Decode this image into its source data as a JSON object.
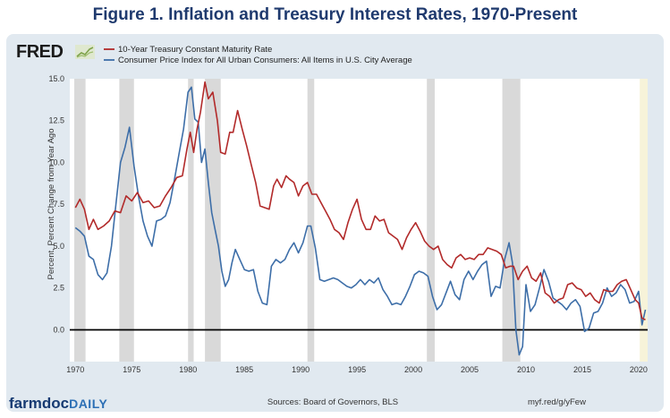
{
  "page": {
    "title": "Figure 1.  Inflation and Treasury Interest Rates, 1970-Present",
    "fred_logo": "FRED",
    "brand_main": "farmdoc",
    "brand_sub": "DAILY",
    "source": "Sources: Board of Governors, BLS",
    "url": "myf.red/g/yFew",
    "colors": {
      "treasury": "#b22a2a",
      "cpi": "#3d6ea8",
      "recession": "#d9d9d9",
      "frame": "#e1e9f0"
    }
  },
  "chart_data": {
    "type": "line",
    "title": "Figure 1.  Inflation and Treasury Interest Rates, 1970-Present",
    "ylabel": "Percent, Percent Change from Year Ago",
    "xlabel": "",
    "xlim": [
      1969.5,
      2020.8
    ],
    "ylim": [
      -1.9,
      15.0
    ],
    "x_ticks": [
      "1970",
      "1975",
      "1980",
      "1985",
      "1990",
      "1995",
      "2000",
      "2005",
      "2010",
      "2015",
      "2020"
    ],
    "y_ticks": [
      "15.0",
      "12.5",
      "10.0",
      "7.5",
      "5.0",
      "2.5",
      "0.0"
    ],
    "legend_position": "top-left",
    "recessions": [
      [
        1969.9,
        1970.9
      ],
      [
        1973.9,
        1975.2
      ],
      [
        1980.0,
        1980.5
      ],
      [
        1981.5,
        1982.9
      ],
      [
        1990.6,
        1991.2
      ],
      [
        2001.2,
        2001.9
      ],
      [
        2007.9,
        2009.5
      ],
      [
        2020.1,
        2020.8
      ]
    ],
    "series": [
      {
        "name": "10-Year Treasury Constant Maturity Rate",
        "color": "#b22a2a",
        "x": [
          1970.0,
          1970.4,
          1970.8,
          1971.2,
          1971.6,
          1972.0,
          1972.5,
          1973.0,
          1973.5,
          1974.0,
          1974.5,
          1975.0,
          1975.5,
          1976.0,
          1976.5,
          1977.0,
          1977.5,
          1978.0,
          1978.5,
          1979.0,
          1979.5,
          1979.9,
          1980.2,
          1980.5,
          1980.8,
          1981.1,
          1981.5,
          1981.8,
          1982.2,
          1982.6,
          1982.9,
          1983.3,
          1983.7,
          1984.0,
          1984.4,
          1984.8,
          1985.2,
          1985.6,
          1986.0,
          1986.4,
          1986.8,
          1987.2,
          1987.6,
          1987.9,
          1988.3,
          1988.7,
          1989.0,
          1989.4,
          1989.8,
          1990.2,
          1990.6,
          1991.0,
          1991.4,
          1991.8,
          1992.2,
          1992.6,
          1993.0,
          1993.4,
          1993.8,
          1994.2,
          1994.6,
          1995.0,
          1995.4,
          1995.8,
          1996.2,
          1996.6,
          1997.0,
          1997.4,
          1997.8,
          1998.2,
          1998.6,
          1999.0,
          1999.4,
          1999.8,
          2000.2,
          2000.6,
          2001.0,
          2001.4,
          2001.8,
          2002.2,
          2002.6,
          2003.0,
          2003.4,
          2003.8,
          2004.2,
          2004.6,
          2005.0,
          2005.4,
          2005.8,
          2006.2,
          2006.6,
          2007.0,
          2007.4,
          2007.8,
          2008.2,
          2008.6,
          2008.9,
          2009.3,
          2009.7,
          2010.1,
          2010.5,
          2010.9,
          2011.3,
          2011.7,
          2012.1,
          2012.5,
          2012.9,
          2013.3,
          2013.7,
          2014.1,
          2014.5,
          2014.9,
          2015.3,
          2015.7,
          2016.1,
          2016.5,
          2016.9,
          2017.3,
          2017.7,
          2018.1,
          2018.5,
          2018.9,
          2019.3,
          2019.7,
          2020.0,
          2020.3,
          2020.6
        ],
        "values": [
          7.3,
          7.8,
          7.2,
          6.0,
          6.6,
          6.0,
          6.2,
          6.5,
          7.1,
          7.0,
          8.0,
          7.7,
          8.2,
          7.6,
          7.7,
          7.3,
          7.4,
          8.0,
          8.5,
          9.1,
          9.2,
          10.8,
          11.8,
          10.6,
          12.0,
          13.0,
          14.8,
          13.8,
          14.2,
          12.5,
          10.6,
          10.5,
          11.8,
          11.8,
          13.1,
          12.0,
          11.0,
          9.9,
          8.8,
          7.4,
          7.3,
          7.2,
          8.6,
          9.0,
          8.5,
          9.2,
          9.0,
          8.8,
          8.0,
          8.6,
          8.8,
          8.1,
          8.1,
          7.6,
          7.1,
          6.6,
          6.0,
          5.8,
          5.4,
          6.4,
          7.2,
          7.8,
          6.6,
          6.0,
          6.0,
          6.8,
          6.5,
          6.6,
          5.8,
          5.6,
          5.4,
          4.8,
          5.5,
          6.0,
          6.4,
          5.9,
          5.3,
          5.0,
          4.8,
          5.0,
          4.2,
          3.9,
          3.7,
          4.3,
          4.5,
          4.2,
          4.3,
          4.2,
          4.5,
          4.5,
          4.9,
          4.8,
          4.7,
          4.5,
          3.7,
          3.8,
          3.8,
          3.0,
          3.5,
          3.8,
          3.1,
          2.9,
          3.4,
          2.2,
          2.0,
          1.6,
          1.8,
          1.9,
          2.7,
          2.8,
          2.5,
          2.4,
          2.0,
          2.2,
          1.8,
          1.6,
          2.4,
          2.3,
          2.3,
          2.7,
          2.9,
          3.0,
          2.4,
          1.8,
          1.6,
          0.7,
          0.6
        ]
      },
      {
        "name": "Consumer Price Index for All Urban Consumers: All Items in U.S. City Average",
        "color": "#3d6ea8",
        "x": [
          1970.0,
          1970.4,
          1970.8,
          1971.2,
          1971.6,
          1972.0,
          1972.4,
          1972.8,
          1973.2,
          1973.6,
          1974.0,
          1974.4,
          1974.8,
          1975.2,
          1975.6,
          1976.0,
          1976.4,
          1976.8,
          1977.2,
          1977.6,
          1978.0,
          1978.4,
          1978.8,
          1979.2,
          1979.6,
          1980.0,
          1980.3,
          1980.6,
          1980.9,
          1981.2,
          1981.5,
          1981.8,
          1982.1,
          1982.4,
          1982.7,
          1983.0,
          1983.3,
          1983.6,
          1983.9,
          1984.2,
          1984.6,
          1985.0,
          1985.4,
          1985.8,
          1986.2,
          1986.6,
          1987.0,
          1987.4,
          1987.8,
          1988.2,
          1988.6,
          1989.0,
          1989.4,
          1989.8,
          1990.2,
          1990.6,
          1990.9,
          1991.3,
          1991.7,
          1992.1,
          1992.5,
          1992.9,
          1993.3,
          1993.7,
          1994.1,
          1994.5,
          1994.9,
          1995.3,
          1995.7,
          1996.1,
          1996.5,
          1996.9,
          1997.3,
          1997.7,
          1998.1,
          1998.5,
          1998.9,
          1999.3,
          1999.7,
          2000.1,
          2000.5,
          2000.9,
          2001.3,
          2001.7,
          2002.1,
          2002.5,
          2002.9,
          2003.3,
          2003.7,
          2004.1,
          2004.5,
          2004.9,
          2005.3,
          2005.7,
          2006.1,
          2006.5,
          2006.9,
          2007.3,
          2007.7,
          2008.1,
          2008.5,
          2008.8,
          2009.1,
          2009.4,
          2009.7,
          2010.0,
          2010.4,
          2010.8,
          2011.2,
          2011.6,
          2012.0,
          2012.4,
          2012.8,
          2013.2,
          2013.6,
          2014.0,
          2014.4,
          2014.8,
          2015.2,
          2015.6,
          2016.0,
          2016.4,
          2016.8,
          2017.2,
          2017.6,
          2018.0,
          2018.4,
          2018.8,
          2019.2,
          2019.6,
          2020.0,
          2020.3,
          2020.6
        ],
        "values": [
          6.1,
          5.9,
          5.6,
          4.4,
          4.2,
          3.3,
          3.0,
          3.4,
          5.0,
          7.5,
          10.0,
          10.9,
          12.1,
          9.8,
          8.0,
          6.5,
          5.6,
          5.0,
          6.5,
          6.6,
          6.8,
          7.6,
          9.0,
          10.5,
          12.0,
          14.2,
          14.5,
          12.6,
          12.4,
          10.0,
          10.8,
          8.8,
          7.0,
          6.0,
          5.0,
          3.5,
          2.6,
          3.0,
          4.0,
          4.8,
          4.2,
          3.6,
          3.5,
          3.6,
          2.3,
          1.6,
          1.5,
          3.8,
          4.2,
          4.0,
          4.2,
          4.8,
          5.2,
          4.6,
          5.2,
          6.2,
          6.2,
          4.9,
          3.0,
          2.9,
          3.0,
          3.1,
          3.0,
          2.8,
          2.6,
          2.5,
          2.7,
          3.0,
          2.7,
          3.0,
          2.8,
          3.1,
          2.4,
          2.0,
          1.5,
          1.6,
          1.5,
          2.0,
          2.6,
          3.3,
          3.5,
          3.4,
          3.2,
          2.0,
          1.2,
          1.5,
          2.2,
          2.9,
          2.1,
          1.8,
          3.0,
          3.5,
          3.0,
          3.5,
          3.9,
          4.1,
          2.0,
          2.6,
          2.5,
          4.2,
          5.2,
          4.0,
          0.0,
          -1.5,
          -1.0,
          2.7,
          1.1,
          1.5,
          2.5,
          3.6,
          2.9,
          1.9,
          1.7,
          1.5,
          1.2,
          1.6,
          1.8,
          1.4,
          -0.1,
          0.1,
          1.0,
          1.1,
          1.6,
          2.5,
          2.0,
          2.2,
          2.7,
          2.4,
          1.6,
          1.7,
          2.3,
          0.3,
          1.2
        ]
      }
    ]
  }
}
